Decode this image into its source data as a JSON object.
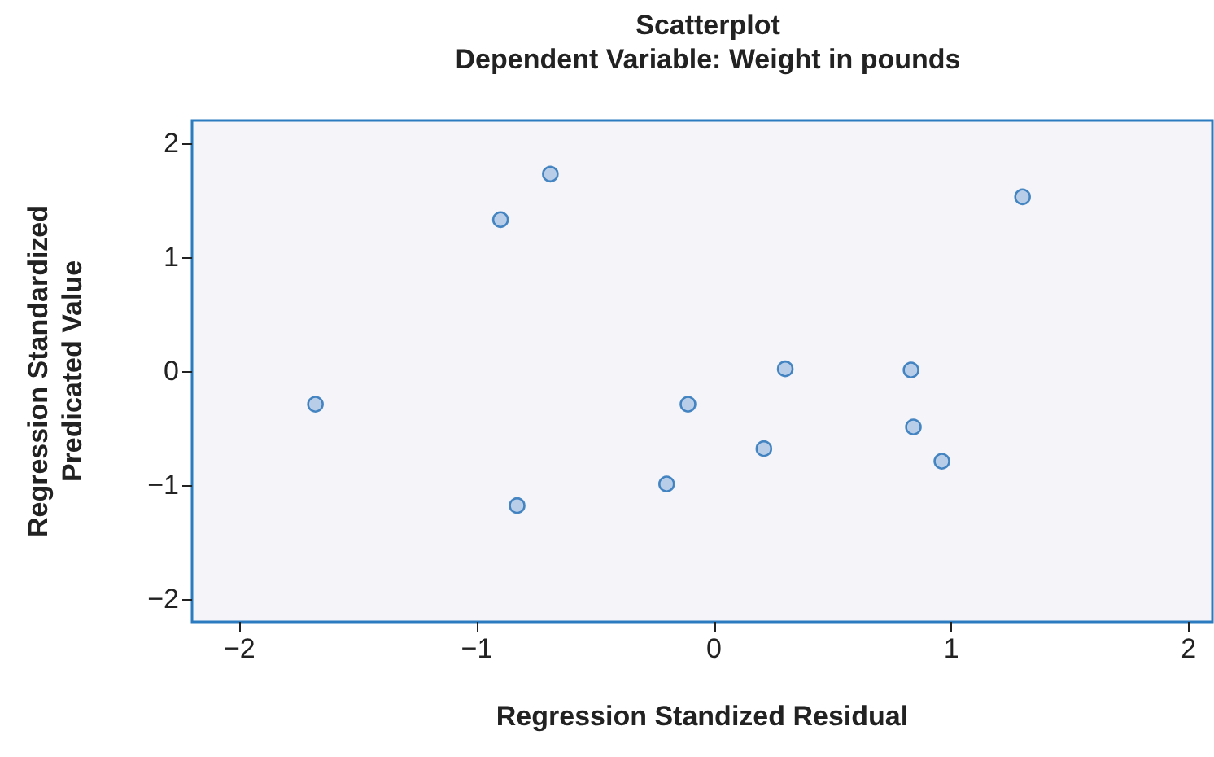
{
  "chart_data": {
    "type": "scatter",
    "title": "Scatterplot",
    "subtitle": "Dependent Variable: Weight in pounds",
    "xlabel": "Regression Standized Residual",
    "ylabel": "Regression Standardized Predicated Value",
    "x": [
      -1.68,
      -0.9,
      -0.69,
      -0.83,
      -0.2,
      -0.11,
      0.21,
      0.3,
      0.83,
      0.84,
      0.96,
      1.3
    ],
    "values": [
      -0.29,
      1.33,
      1.73,
      -1.18,
      -0.99,
      -0.29,
      -0.68,
      0.02,
      0.01,
      -0.49,
      -0.79,
      1.53
    ],
    "color": "#a9c3e4",
    "marker": "circle",
    "grid": false,
    "xlim": [
      -2.2,
      2.1
    ],
    "xticks": [
      -2,
      -1,
      0,
      1,
      2
    ],
    "ylim": [
      -2.2,
      2.2
    ],
    "yticks": [
      -2,
      -1,
      0,
      1,
      2
    ]
  }
}
